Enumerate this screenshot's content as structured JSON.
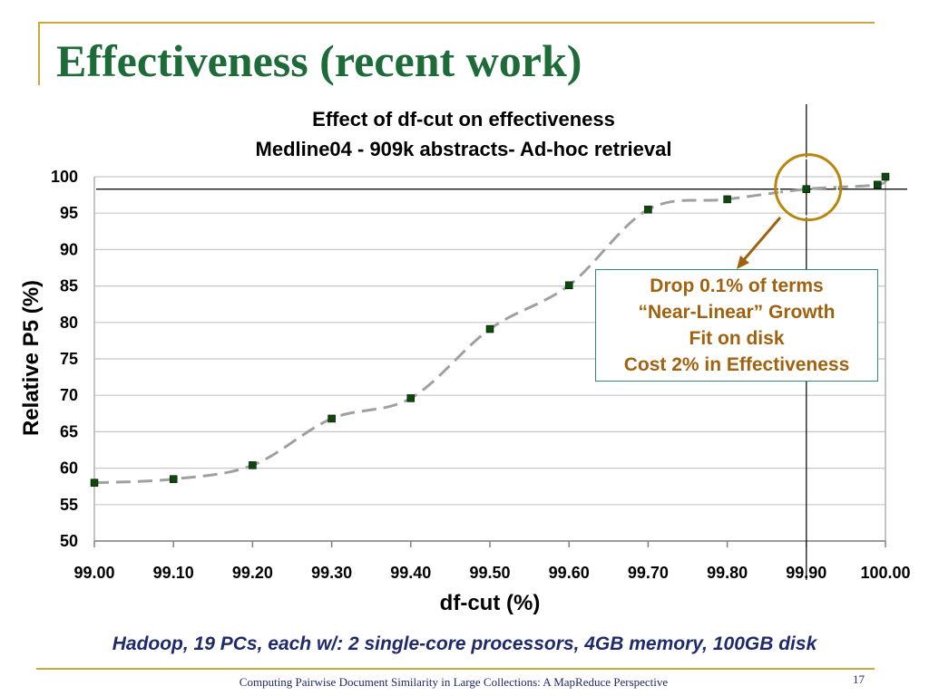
{
  "slide": {
    "title": "Effectiveness (recent work)",
    "footnote": "Hadoop, 19 PCs, each w/: 2 single-core processors, 4GB memory, 100GB disk",
    "footer": "Computing Pairwise Document Similarity in Large Collections: A MapReduce Perspective",
    "page_number": "17"
  },
  "chart_data": {
    "type": "line",
    "title": "Effect of df-cut on effectiveness",
    "subtitle": "Medline04 - 909k abstracts- Ad-hoc retrieval",
    "xlabel": "df-cut (%)",
    "ylabel": "Relative P5 (%)",
    "xlim": [
      99.0,
      100.0
    ],
    "ylim": [
      50,
      100
    ],
    "x_ticks": [
      "99.00",
      "99.10",
      "99.20",
      "99.30",
      "99.40",
      "99.50",
      "99.60",
      "99.70",
      "99.80",
      "99.90",
      "100.00"
    ],
    "y_ticks": [
      "100",
      "95",
      "90",
      "85",
      "80",
      "75",
      "70",
      "65",
      "60",
      "55",
      "50"
    ],
    "grid": true,
    "series": [
      {
        "x": [
          99.0,
          99.1,
          99.2,
          99.3,
          99.4,
          99.5,
          99.6,
          99.7,
          99.8,
          99.9,
          99.99,
          100.0
        ],
        "y": [
          58.0,
          58.5,
          60.4,
          66.8,
          69.6,
          79.1,
          85.1,
          95.5,
          96.9,
          98.3,
          98.9,
          100.0
        ],
        "marker_color": "#0b4a0b",
        "line_color": "#a0a0a0",
        "line_style": "dashed"
      }
    ],
    "reference_lines": {
      "x": 99.9,
      "y": 98.3
    },
    "highlight": {
      "x": 99.9,
      "y": 98.3,
      "color": "#b8860b"
    },
    "annotation": {
      "lines": [
        "Drop 0.1% of terms",
        "“Near-Linear” Growth",
        "Fit on disk",
        "Cost 2% in Effectiveness"
      ],
      "text_color": "#a0620f",
      "border_color": "#2e8b6b"
    }
  }
}
